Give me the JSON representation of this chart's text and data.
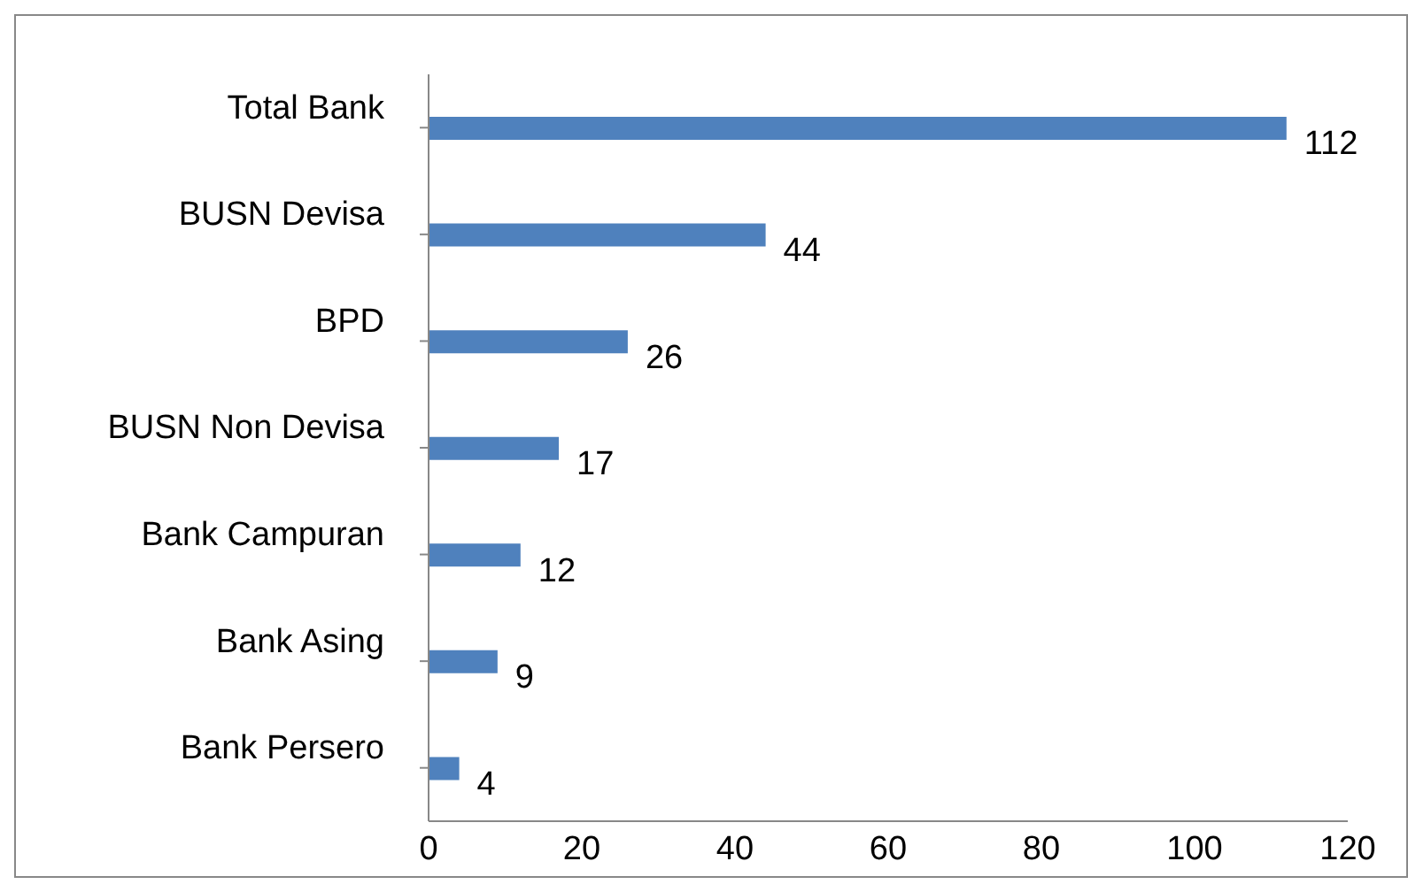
{
  "chart_data": {
    "type": "bar",
    "orientation": "horizontal",
    "categories": [
      "Total Bank",
      "BUSN Devisa",
      "BPD",
      "BUSN Non Devisa",
      "Bank Campuran",
      "Bank Asing",
      "Bank Persero"
    ],
    "values": [
      112,
      44,
      26,
      17,
      12,
      9,
      4
    ],
    "color": "#4f81bd",
    "xlim": [
      0,
      120
    ],
    "xticks": [
      0,
      20,
      40,
      60,
      80,
      100,
      120
    ],
    "data_labels": true
  }
}
